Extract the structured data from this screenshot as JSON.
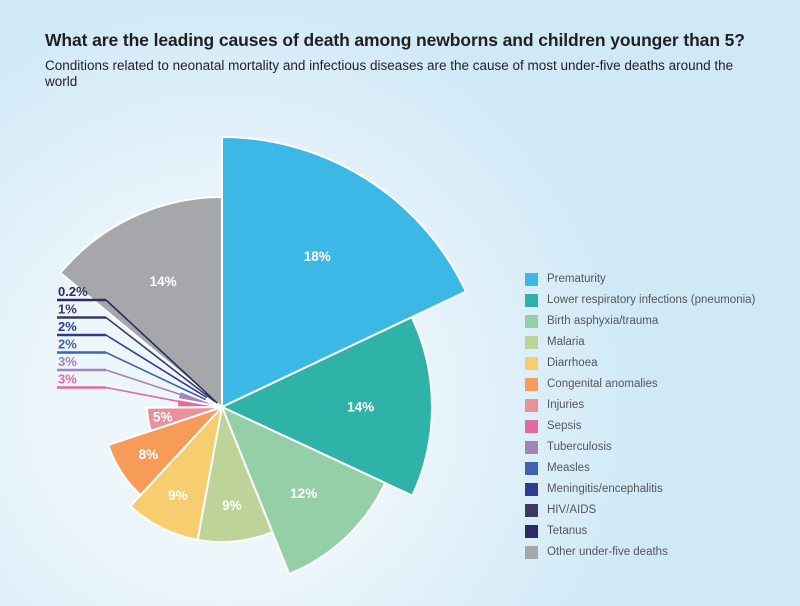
{
  "header": {
    "title": "What are the leading causes of death among newborns and children younger than 5?",
    "subtitle": "Conditions related to neonatal mortality and infectious diseases are the cause of most under-five deaths around the world"
  },
  "chart_data": {
    "type": "pie",
    "variant": "variable-radius",
    "title": "What are the leading causes of death among newborns and children younger than 5?",
    "subtitle": "Conditions related to neonatal mortality and infectious diseases are the cause of most under-five deaths around the world",
    "unit": "%",
    "legend_position": "right",
    "start_angle_deg": 0,
    "direction": "clockwise",
    "slices": [
      {
        "label": "Prematurity",
        "value": 18,
        "pct_label": "18%",
        "color": "#3cb8e6"
      },
      {
        "label": "Lower respiratory infections (pneumonia)",
        "value": 14,
        "pct_label": "14%",
        "color": "#2fb3a9"
      },
      {
        "label": "Birth asphyxia/trauma",
        "value": 12,
        "pct_label": "12%",
        "color": "#94cfa7"
      },
      {
        "label": "Malaria",
        "value": 9,
        "pct_label": "9%",
        "color": "#bed398"
      },
      {
        "label": "Diarrhoea",
        "value": 9,
        "pct_label": "9%",
        "color": "#f6cd6f"
      },
      {
        "label": "Congenital anomalies",
        "value": 8,
        "pct_label": "8%",
        "color": "#f79b58"
      },
      {
        "label": "Injuries",
        "value": 5,
        "pct_label": "5%",
        "color": "#e9909b"
      },
      {
        "label": "Sepsis",
        "value": 3,
        "pct_label": "3%",
        "color": "#e16a9e"
      },
      {
        "label": "Tuberculosis",
        "value": 3,
        "pct_label": "3%",
        "color": "#a284ba"
      },
      {
        "label": "Measles",
        "value": 2,
        "pct_label": "2%",
        "color": "#3e64ad"
      },
      {
        "label": "Meningitis/encephalitis",
        "value": 2,
        "pct_label": "2%",
        "color": "#2c3c94"
      },
      {
        "label": "HIV/AIDS",
        "value": 1,
        "pct_label": "1%",
        "color": "#3c3a5e"
      },
      {
        "label": "Tetanus",
        "value": 0.2,
        "pct_label": "0.2%",
        "color": "#2e2a62"
      },
      {
        "label": "Other under-five deaths",
        "value": 14,
        "pct_label": "14%",
        "color": "#a5a7aa"
      }
    ]
  },
  "colors": {
    "background_outer": "#cfe9f7",
    "background_inner": "#edf6fb",
    "title_text": "#231f20",
    "legend_text": "#55565a",
    "slice_divider": "#ffffff",
    "slice_label_text": "#ffffff"
  }
}
